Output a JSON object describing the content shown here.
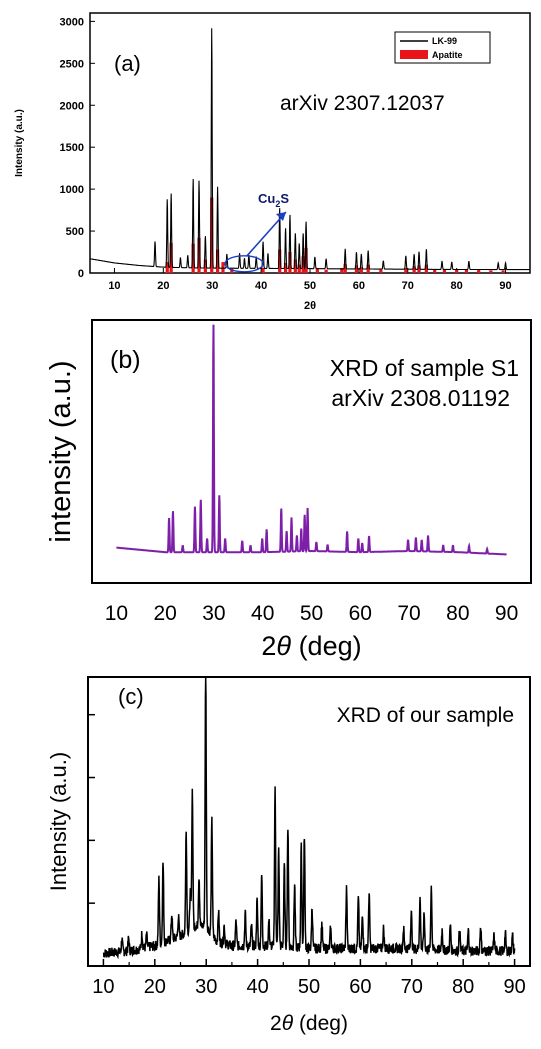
{
  "chart_data": [
    {
      "type": "line",
      "panel_label": "(a)",
      "annotation": "arXiv 2307.12037",
      "xlabel": "2θ",
      "ylabel": "Intensity (a.u.)",
      "xlim": [
        5,
        95
      ],
      "ylim": [
        0,
        3100
      ],
      "xticks": [
        10,
        20,
        30,
        40,
        50,
        60,
        70,
        80,
        90
      ],
      "yticks": [
        0,
        500,
        1000,
        1500,
        2000,
        2500,
        3000
      ],
      "legend": {
        "placement": "top-right",
        "entries": [
          {
            "label": "LK-99",
            "color": "#000000",
            "kind": "line"
          },
          {
            "label": "Apatite",
            "color": "#e8141a",
            "kind": "fill"
          }
        ]
      },
      "callout": {
        "text": "Cu",
        "sub": "2",
        "suffix": "S",
        "target_x": 36.5,
        "target_y": 110
      },
      "series": [
        {
          "name": "LK-99",
          "color": "#000000",
          "baseline": [
            [
              5,
              170
            ],
            [
              10,
              120
            ],
            [
              15,
              90
            ],
            [
              20,
              70
            ],
            [
              25,
              62
            ],
            [
              30,
              58
            ],
            [
              40,
              55
            ],
            [
              50,
              52
            ],
            [
              60,
              48
            ],
            [
              70,
              45
            ],
            [
              80,
              42
            ],
            [
              95,
              40
            ]
          ],
          "peaks": [
            [
              18.3,
              300
            ],
            [
              20.8,
              810
            ],
            [
              21.6,
              880
            ],
            [
              23.5,
              120
            ],
            [
              25.0,
              150
            ],
            [
              26.1,
              1060
            ],
            [
              27.3,
              1040
            ],
            [
              28.6,
              380
            ],
            [
              29.9,
              2860
            ],
            [
              31.1,
              970
            ],
            [
              33.0,
              170
            ],
            [
              35.6,
              180
            ],
            [
              36.6,
              120
            ],
            [
              37.5,
              160
            ],
            [
              39.0,
              140
            ],
            [
              40.4,
              320
            ],
            [
              41.4,
              180
            ],
            [
              43.8,
              720
            ],
            [
              45.0,
              480
            ],
            [
              45.9,
              640
            ],
            [
              47.0,
              420
            ],
            [
              47.8,
              300
            ],
            [
              48.6,
              420
            ],
            [
              49.2,
              560
            ],
            [
              51.0,
              140
            ],
            [
              53.3,
              120
            ],
            [
              57.2,
              240
            ],
            [
              59.5,
              200
            ],
            [
              60.5,
              180
            ],
            [
              61.9,
              220
            ],
            [
              65.0,
              100
            ],
            [
              69.6,
              160
            ],
            [
              71.3,
              180
            ],
            [
              72.3,
              210
            ],
            [
              73.8,
              240
            ],
            [
              77.0,
              100
            ],
            [
              79.0,
              90
            ],
            [
              82.5,
              100
            ],
            [
              88.5,
              80
            ],
            [
              90.0,
              80
            ]
          ]
        },
        {
          "name": "Apatite",
          "color": "#e8141a",
          "sticks": [
            [
              20.8,
              130
            ],
            [
              21.6,
              360
            ],
            [
              26.1,
              350
            ],
            [
              27.3,
              420
            ],
            [
              28.6,
              160
            ],
            [
              29.9,
              900
            ],
            [
              31.1,
              280
            ],
            [
              32.2,
              130
            ],
            [
              34.0,
              50
            ],
            [
              40.4,
              60
            ],
            [
              43.8,
              280
            ],
            [
              45.0,
              120
            ],
            [
              45.9,
              250
            ],
            [
              47.0,
              160
            ],
            [
              47.8,
              100
            ],
            [
              48.6,
              200
            ],
            [
              49.2,
              300
            ],
            [
              51.5,
              60
            ],
            [
              53.3,
              40
            ],
            [
              56.5,
              60
            ],
            [
              57.2,
              110
            ],
            [
              59.5,
              90
            ],
            [
              60.5,
              70
            ],
            [
              61.9,
              100
            ],
            [
              64.5,
              40
            ],
            [
              69.6,
              60
            ],
            [
              71.3,
              80
            ],
            [
              72.3,
              90
            ],
            [
              73.8,
              100
            ],
            [
              75.5,
              40
            ],
            [
              77.5,
              40
            ],
            [
              80.0,
              40
            ],
            [
              82.0,
              40
            ],
            [
              84.5,
              40
            ],
            [
              87.0,
              30
            ],
            [
              89.5,
              30
            ]
          ]
        }
      ]
    },
    {
      "type": "line",
      "panel_label": "(b)",
      "annotation_lines": [
        "XRD of sample S1",
        "arXiv 2308.01192"
      ],
      "xlabel_prefix": "2",
      "xlabel_symbol": "θ",
      "xlabel_suffix": " (deg)",
      "ylabel": "intensity (a.u.)",
      "xlim": [
        5,
        95
      ],
      "ylim": [
        0,
        1.05
      ],
      "xticks": [
        10,
        20,
        30,
        40,
        50,
        60,
        70,
        80,
        90
      ],
      "series": [
        {
          "color": "#7d1fa8",
          "baseline": [
            [
              10,
              0.05
            ],
            [
              20,
              0.03
            ],
            [
              30,
              0.03
            ],
            [
              40,
              0.03
            ],
            [
              50,
              0.035
            ],
            [
              60,
              0.03
            ],
            [
              70,
              0.035
            ],
            [
              80,
              0.03
            ],
            [
              90,
              0.02
            ]
          ],
          "peaks": [
            [
              20.8,
              0.15
            ],
            [
              21.6,
              0.18
            ],
            [
              23.6,
              0.03
            ],
            [
              26.1,
              0.2
            ],
            [
              27.3,
              0.23
            ],
            [
              28.6,
              0.06
            ],
            [
              29.9,
              1.0
            ],
            [
              31.1,
              0.25
            ],
            [
              32.3,
              0.06
            ],
            [
              35.8,
              0.05
            ],
            [
              37.5,
              0.03
            ],
            [
              39.9,
              0.06
            ],
            [
              40.8,
              0.1
            ],
            [
              43.8,
              0.19
            ],
            [
              44.9,
              0.09
            ],
            [
              45.9,
              0.15
            ],
            [
              47.0,
              0.07
            ],
            [
              47.9,
              0.1
            ],
            [
              48.6,
              0.16
            ],
            [
              49.2,
              0.19
            ],
            [
              51.0,
              0.04
            ],
            [
              53.3,
              0.03
            ],
            [
              57.3,
              0.09
            ],
            [
              59.6,
              0.06
            ],
            [
              60.4,
              0.04
            ],
            [
              61.8,
              0.07
            ],
            [
              69.8,
              0.05
            ],
            [
              71.4,
              0.06
            ],
            [
              72.6,
              0.05
            ],
            [
              73.9,
              0.07
            ],
            [
              77.0,
              0.03
            ],
            [
              79.0,
              0.03
            ],
            [
              82.3,
              0.03
            ],
            [
              86.0,
              0.02
            ]
          ]
        }
      ]
    },
    {
      "type": "line",
      "panel_label": "(c)",
      "annotation": "XRD of our sample",
      "xlabel_prefix": "2",
      "xlabel_symbol": "θ",
      "xlabel_suffix": " (deg)",
      "ylabel": "Intensity (a.u.)",
      "xlim": [
        7,
        93
      ],
      "ylim": [
        0,
        1.15
      ],
      "xticks": [
        10,
        20,
        30,
        40,
        50,
        60,
        70,
        80,
        90
      ],
      "series": [
        {
          "color": "#000000",
          "noise_amplitude": 0.02,
          "baseline": [
            [
              10,
              0.05
            ],
            [
              15,
              0.06
            ],
            [
              20,
              0.08
            ],
            [
              25,
              0.12
            ],
            [
              28,
              0.16
            ],
            [
              30,
              0.16
            ],
            [
              32,
              0.1
            ],
            [
              35,
              0.08
            ],
            [
              40,
              0.08
            ],
            [
              45,
              0.08
            ],
            [
              50,
              0.07
            ],
            [
              60,
              0.07
            ],
            [
              70,
              0.07
            ],
            [
              80,
              0.06
            ],
            [
              90,
              0.06
            ]
          ],
          "peaks": [
            [
              13.6,
              0.05
            ],
            [
              14.9,
              0.05
            ],
            [
              17.5,
              0.06
            ],
            [
              18.4,
              0.05
            ],
            [
              20.8,
              0.26
            ],
            [
              21.6,
              0.32
            ],
            [
              23.3,
              0.1
            ],
            [
              24.6,
              0.08
            ],
            [
              26.1,
              0.4
            ],
            [
              26.9,
              0.15
            ],
            [
              27.3,
              0.55
            ],
            [
              28.6,
              0.2
            ],
            [
              29.9,
              1.0
            ],
            [
              31.1,
              0.45
            ],
            [
              32.4,
              0.12
            ],
            [
              33.5,
              0.07
            ],
            [
              35.8,
              0.1
            ],
            [
              37.6,
              0.13
            ],
            [
              38.8,
              0.08
            ],
            [
              39.9,
              0.18
            ],
            [
              40.8,
              0.28
            ],
            [
              42.2,
              0.1
            ],
            [
              43.4,
              0.62
            ],
            [
              44.1,
              0.38
            ],
            [
              45.2,
              0.32
            ],
            [
              45.9,
              0.48
            ],
            [
              47.2,
              0.25
            ],
            [
              48.5,
              0.4
            ],
            [
              49.1,
              0.45
            ],
            [
              50.6,
              0.16
            ],
            [
              52.5,
              0.1
            ],
            [
              54.2,
              0.08
            ],
            [
              57.3,
              0.24
            ],
            [
              59.6,
              0.2
            ],
            [
              60.4,
              0.14
            ],
            [
              61.7,
              0.22
            ],
            [
              64.5,
              0.08
            ],
            [
              68.4,
              0.08
            ],
            [
              69.9,
              0.15
            ],
            [
              71.6,
              0.2
            ],
            [
              72.4,
              0.14
            ],
            [
              73.8,
              0.25
            ],
            [
              75.9,
              0.08
            ],
            [
              77.5,
              0.1
            ],
            [
              79.3,
              0.09
            ],
            [
              81.0,
              0.08
            ],
            [
              83.4,
              0.1
            ],
            [
              86.0,
              0.06
            ],
            [
              88.2,
              0.07
            ],
            [
              89.6,
              0.06
            ]
          ]
        }
      ]
    }
  ]
}
